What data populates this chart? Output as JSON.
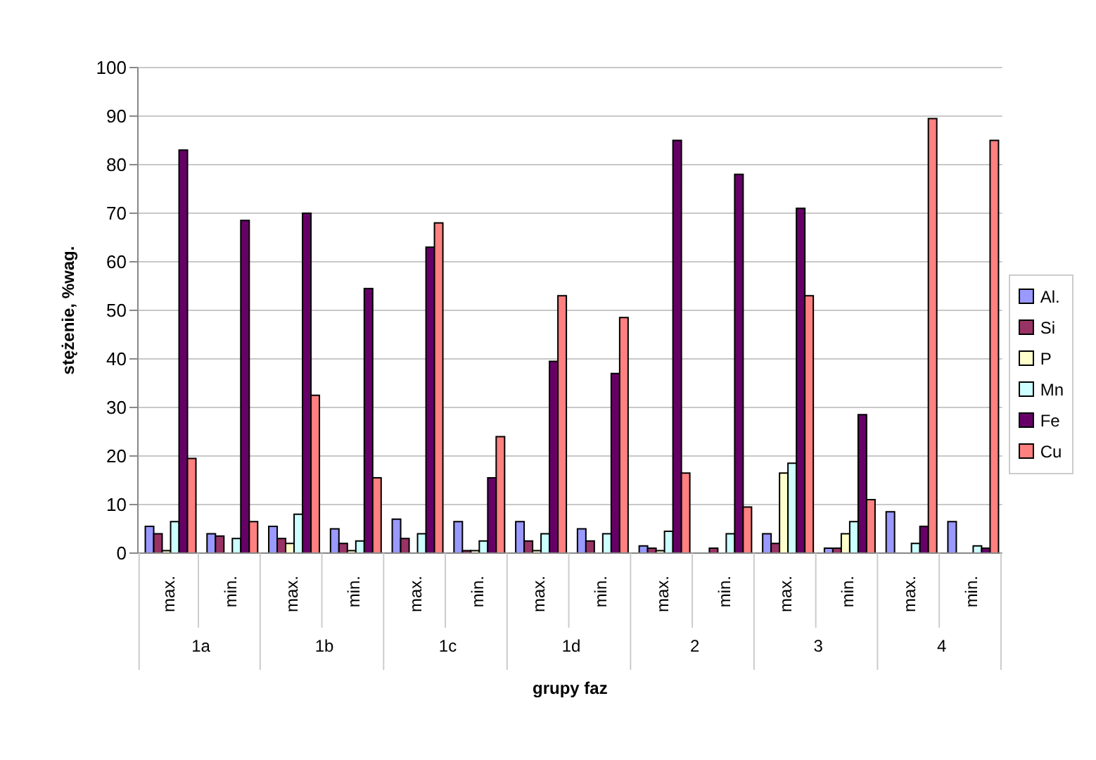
{
  "chart_data": {
    "type": "bar",
    "xlabel": "grupy faz",
    "ylabel": "stężenie, %wag.",
    "categories": [
      "max.",
      "min.",
      "max.",
      "min.",
      "max.",
      "min.",
      "max.",
      "min.",
      "max.",
      "min.",
      "max.",
      "min.",
      "max.",
      "min."
    ],
    "annotations": [
      "1a",
      "1b",
      "1c",
      "1d",
      "2",
      "3",
      "4"
    ],
    "ylim": [
      0,
      100
    ],
    "yticks": [
      0,
      10,
      20,
      30,
      40,
      50,
      60,
      70,
      80,
      90,
      100
    ],
    "grid": "y",
    "legend": "right",
    "series": [
      {
        "name": "Al.",
        "color": "#9999ff",
        "values": [
          5.5,
          4,
          5.5,
          5,
          7,
          6.5,
          6.5,
          5,
          1.5,
          0,
          4,
          1,
          8.5,
          6.5
        ]
      },
      {
        "name": "Si",
        "color": "#993366",
        "values": [
          4,
          3.5,
          3,
          2,
          3,
          0.5,
          2.5,
          2.5,
          1,
          1,
          2,
          1,
          0,
          0
        ]
      },
      {
        "name": "P",
        "color": "#ffffcc",
        "values": [
          0.5,
          0,
          2,
          0.5,
          0,
          0.5,
          0.5,
          0,
          0.5,
          0,
          16.5,
          4,
          0,
          0
        ]
      },
      {
        "name": "Mn",
        "color": "#ccffff",
        "values": [
          6.5,
          3,
          8,
          2.5,
          4,
          2.5,
          4,
          4,
          4.5,
          4,
          18.5,
          6.5,
          2,
          1.5
        ]
      },
      {
        "name": "Fe",
        "color": "#660066",
        "values": [
          83,
          68.5,
          70,
          54.5,
          63,
          15.5,
          39.5,
          37,
          85,
          78,
          71,
          28.5,
          5.5,
          1
        ]
      },
      {
        "name": "Cu",
        "color": "#ff8080",
        "values": [
          19.5,
          6.5,
          32.5,
          15.5,
          68,
          24,
          53,
          48.5,
          16.5,
          9.5,
          53,
          11,
          89.5,
          85
        ]
      }
    ]
  }
}
